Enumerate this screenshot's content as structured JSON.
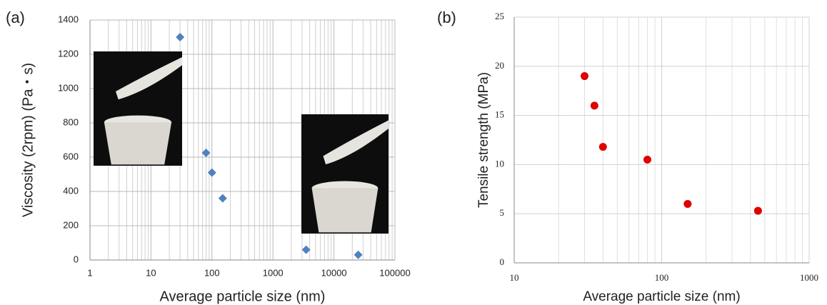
{
  "chart_data": [
    {
      "type": "scatter",
      "panel_label": "(a)",
      "x_label": "Average particle size (nm)",
      "y_label": "Viscosity (2rpm) (Pa・s)",
      "x_scale": "log",
      "grid": true,
      "marker": "diamond",
      "color": "#4f81bd",
      "x": [
        30,
        80,
        100,
        150,
        3500,
        25000
      ],
      "values": [
        1300,
        625,
        510,
        360,
        60,
        30
      ],
      "xlim": [
        1,
        100000
      ],
      "xticks": [
        1,
        10,
        100,
        1000,
        10000,
        100000
      ],
      "ylim": [
        0,
        1400
      ],
      "yticks": [
        0,
        200,
        400,
        600,
        800,
        1000,
        1200,
        1400
      ]
    },
    {
      "type": "scatter",
      "panel_label": "(b)",
      "x_label": "Average particle size (nm)",
      "y_label": "Tensile strength (MPa)",
      "x_scale": "log",
      "grid": true,
      "marker": "circle",
      "color": "#e00000",
      "x": [
        30,
        35,
        40,
        80,
        150,
        450
      ],
      "values": [
        19,
        16,
        11.8,
        10.5,
        6,
        5.3
      ],
      "xlim": [
        10,
        1000
      ],
      "xticks": [
        10,
        100,
        1000
      ],
      "ylim": [
        0,
        25
      ],
      "yticks": [
        0,
        5,
        10,
        15,
        20,
        25
      ]
    }
  ]
}
